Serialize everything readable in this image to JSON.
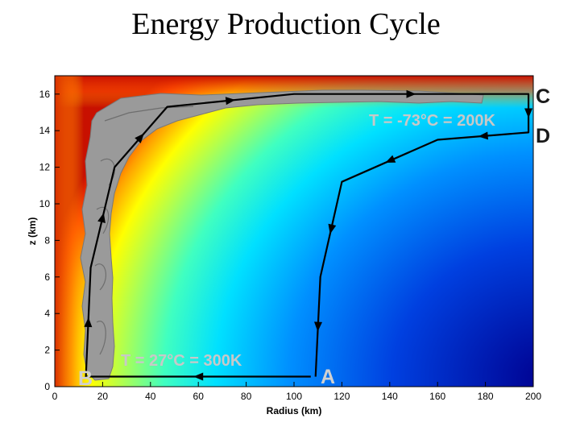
{
  "title": "Energy Production Cycle",
  "axes": {
    "xlabel": "Radius (km)",
    "ylabel": "z (km)",
    "xlim": [
      0,
      200
    ],
    "ylim": [
      0,
      17
    ],
    "xticks": [
      "0",
      "20",
      "40",
      "60",
      "80",
      "100",
      "120",
      "140",
      "160",
      "180",
      "200"
    ],
    "yticks": [
      "0",
      "2",
      "4",
      "6",
      "8",
      "10",
      "12",
      "14",
      "16"
    ]
  },
  "points": {
    "A": "A",
    "B": "B",
    "C": "C",
    "D": "D"
  },
  "labels": {
    "top_temperature": "T = -73°C = 200K",
    "bottom_temperature": "T = 27°C = 300K"
  },
  "colors": {
    "hot": "#d42000",
    "cold": "#00008f",
    "cloud": "#9a9a9a",
    "path": "#000000",
    "label_light": "#c8c8c8",
    "label_dark": "#1a1a1a"
  },
  "cycle_path": {
    "units": "km",
    "points": [
      [
        107,
        0.55
      ],
      [
        13,
        0.55
      ],
      [
        15,
        6.5
      ],
      [
        25,
        12
      ],
      [
        47,
        15.3
      ],
      [
        100,
        16
      ],
      [
        198,
        16
      ],
      [
        198,
        13.9
      ],
      [
        160,
        13.5
      ],
      [
        120,
        11.2
      ],
      [
        111,
        6
      ],
      [
        109,
        0.55
      ]
    ]
  }
}
